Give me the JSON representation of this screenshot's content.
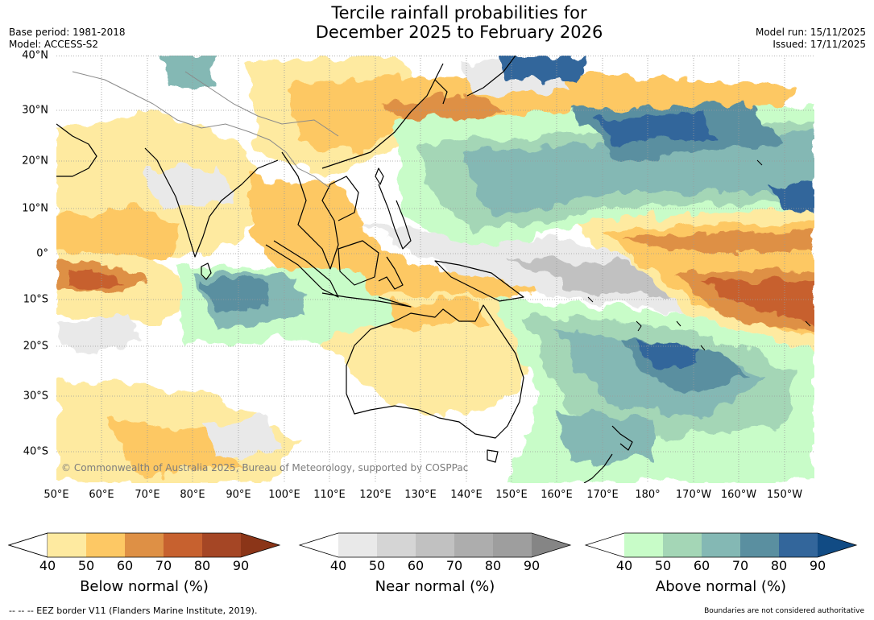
{
  "title_line1": "Tercile rainfall probabilities for",
  "title_line2": "December 2025 to February 2026",
  "base_period": "Base period: 1981-2018",
  "model": "Model: ACCESS-S2",
  "model_run": "Model run: 15/11/2025",
  "issued": "Issued: 17/11/2025",
  "lat_labels": [
    "40°N",
    "30°N",
    "20°N",
    "10°N",
    "0°",
    "10°S",
    "20°S",
    "30°S",
    "40°S"
  ],
  "lon_labels": [
    "50°E",
    "60°E",
    "70°E",
    "80°E",
    "90°E",
    "100°E",
    "110°E",
    "120°E",
    "130°E",
    "140°E",
    "150°E",
    "160°E",
    "170°E",
    "180°",
    "170°W",
    "160°W",
    "150°W"
  ],
  "copyright": "© Commonwealth of Australia 2025, Bureau of Meteorology, supported by COSPPac",
  "colorbars": {
    "below": {
      "label": "Below normal (%)",
      "ticks": [
        "40",
        "50",
        "60",
        "70",
        "80",
        "90"
      ],
      "colors": [
        "#ffffff",
        "#feeaa0",
        "#fdc864",
        "#de9045",
        "#c7612f",
        "#a54625",
        "#8b3518"
      ]
    },
    "near": {
      "label": "Near normal (%)",
      "ticks": [
        "40",
        "50",
        "60",
        "70",
        "80",
        "90"
      ],
      "colors": [
        "#ffffff",
        "#e9e9e9",
        "#d5d5d5",
        "#c1c1c1",
        "#adadad",
        "#9e9e9e",
        "#858585"
      ]
    },
    "above": {
      "label": "Above normal (%)",
      "ticks": [
        "40",
        "50",
        "60",
        "70",
        "80",
        "90"
      ],
      "colors": [
        "#ffffff",
        "#c8fcc8",
        "#a4d6b6",
        "#84b8b4",
        "#5a8fa0",
        "#33669b",
        "#114b84"
      ]
    }
  },
  "footer_left": "--  --  -- EEZ border V11 (Flanders Marine Institute, 2019).",
  "footer_right": "Boundaries are not considered authoritative"
}
